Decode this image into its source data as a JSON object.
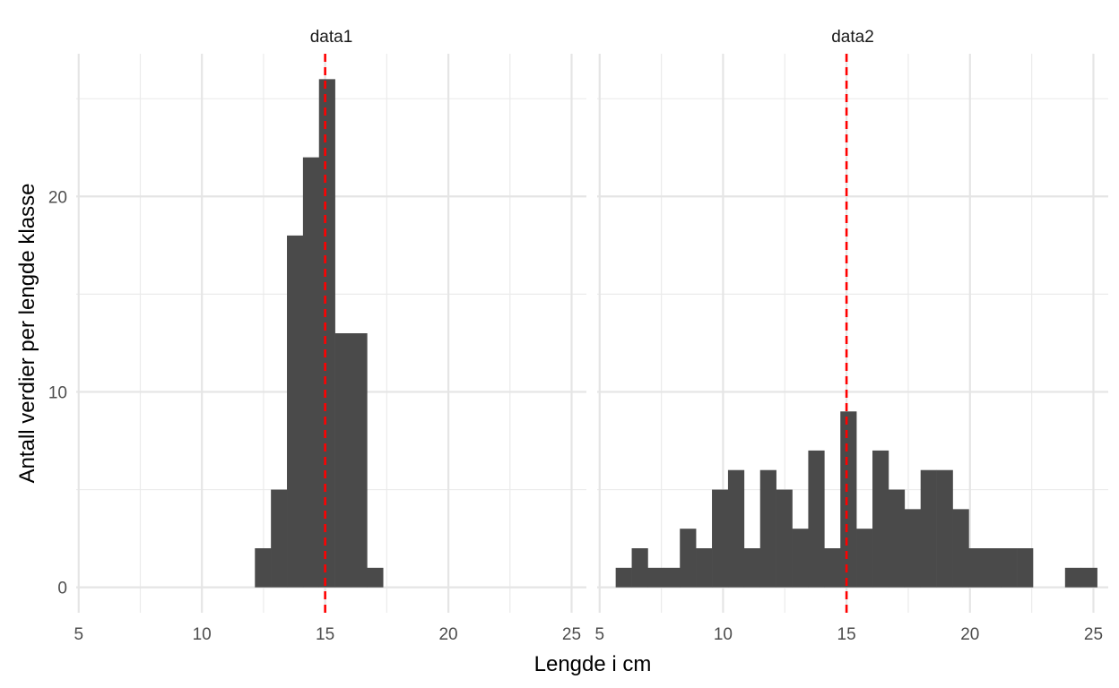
{
  "chart_data": {
    "type": "histogram",
    "xlabel": "Lengde i cm",
    "ylabel": "Antall verdier per lengde klasse",
    "bin_width": 0.65,
    "xlim": [
      4.9,
      25.6
    ],
    "ylim": [
      -1.3,
      27.3
    ],
    "x_ticks": [
      5,
      10,
      15,
      20,
      25
    ],
    "y_ticks": [
      0,
      10,
      20
    ],
    "grid": true,
    "bar_color": "#4a4a4a",
    "reference_line": {
      "x": 15,
      "color": "#ff0000",
      "style": "dashed"
    },
    "panels": [
      {
        "label": "data1",
        "bins": [
          {
            "x0": 12.15,
            "x1": 12.8,
            "count": 2
          },
          {
            "x0": 12.8,
            "x1": 13.45,
            "count": 5
          },
          {
            "x0": 13.45,
            "x1": 14.1,
            "count": 18
          },
          {
            "x0": 14.1,
            "x1": 14.75,
            "count": 22
          },
          {
            "x0": 14.75,
            "x1": 15.4,
            "count": 26
          },
          {
            "x0": 15.4,
            "x1": 16.05,
            "count": 13
          },
          {
            "x0": 16.05,
            "x1": 16.7,
            "count": 13
          },
          {
            "x0": 16.7,
            "x1": 17.35,
            "count": 1
          }
        ]
      },
      {
        "label": "data2",
        "bins": [
          {
            "x0": 5.65,
            "x1": 6.3,
            "count": 1
          },
          {
            "x0": 6.3,
            "x1": 6.95,
            "count": 2
          },
          {
            "x0": 6.95,
            "x1": 7.6,
            "count": 1
          },
          {
            "x0": 7.6,
            "x1": 8.25,
            "count": 1
          },
          {
            "x0": 8.25,
            "x1": 8.9,
            "count": 3
          },
          {
            "x0": 8.9,
            "x1": 9.55,
            "count": 2
          },
          {
            "x0": 9.55,
            "x1": 10.2,
            "count": 5
          },
          {
            "x0": 10.2,
            "x1": 10.85,
            "count": 6
          },
          {
            "x0": 10.85,
            "x1": 11.5,
            "count": 2
          },
          {
            "x0": 11.5,
            "x1": 12.15,
            "count": 6
          },
          {
            "x0": 12.15,
            "x1": 12.8,
            "count": 5
          },
          {
            "x0": 12.8,
            "x1": 13.45,
            "count": 3
          },
          {
            "x0": 13.45,
            "x1": 14.1,
            "count": 7
          },
          {
            "x0": 14.1,
            "x1": 14.75,
            "count": 2
          },
          {
            "x0": 14.75,
            "x1": 15.4,
            "count": 9
          },
          {
            "x0": 15.4,
            "x1": 16.05,
            "count": 3
          },
          {
            "x0": 16.05,
            "x1": 16.7,
            "count": 7
          },
          {
            "x0": 16.7,
            "x1": 17.35,
            "count": 5
          },
          {
            "x0": 17.35,
            "x1": 18.0,
            "count": 4
          },
          {
            "x0": 18.0,
            "x1": 18.65,
            "count": 6
          },
          {
            "x0": 18.65,
            "x1": 19.3,
            "count": 6
          },
          {
            "x0": 19.3,
            "x1": 19.95,
            "count": 4
          },
          {
            "x0": 19.95,
            "x1": 20.6,
            "count": 2
          },
          {
            "x0": 20.6,
            "x1": 21.25,
            "count": 2
          },
          {
            "x0": 21.25,
            "x1": 21.9,
            "count": 2
          },
          {
            "x0": 21.9,
            "x1": 22.55,
            "count": 2
          },
          {
            "x0": 23.85,
            "x1": 24.5,
            "count": 1
          },
          {
            "x0": 24.5,
            "x1": 25.15,
            "count": 1
          }
        ]
      }
    ]
  }
}
